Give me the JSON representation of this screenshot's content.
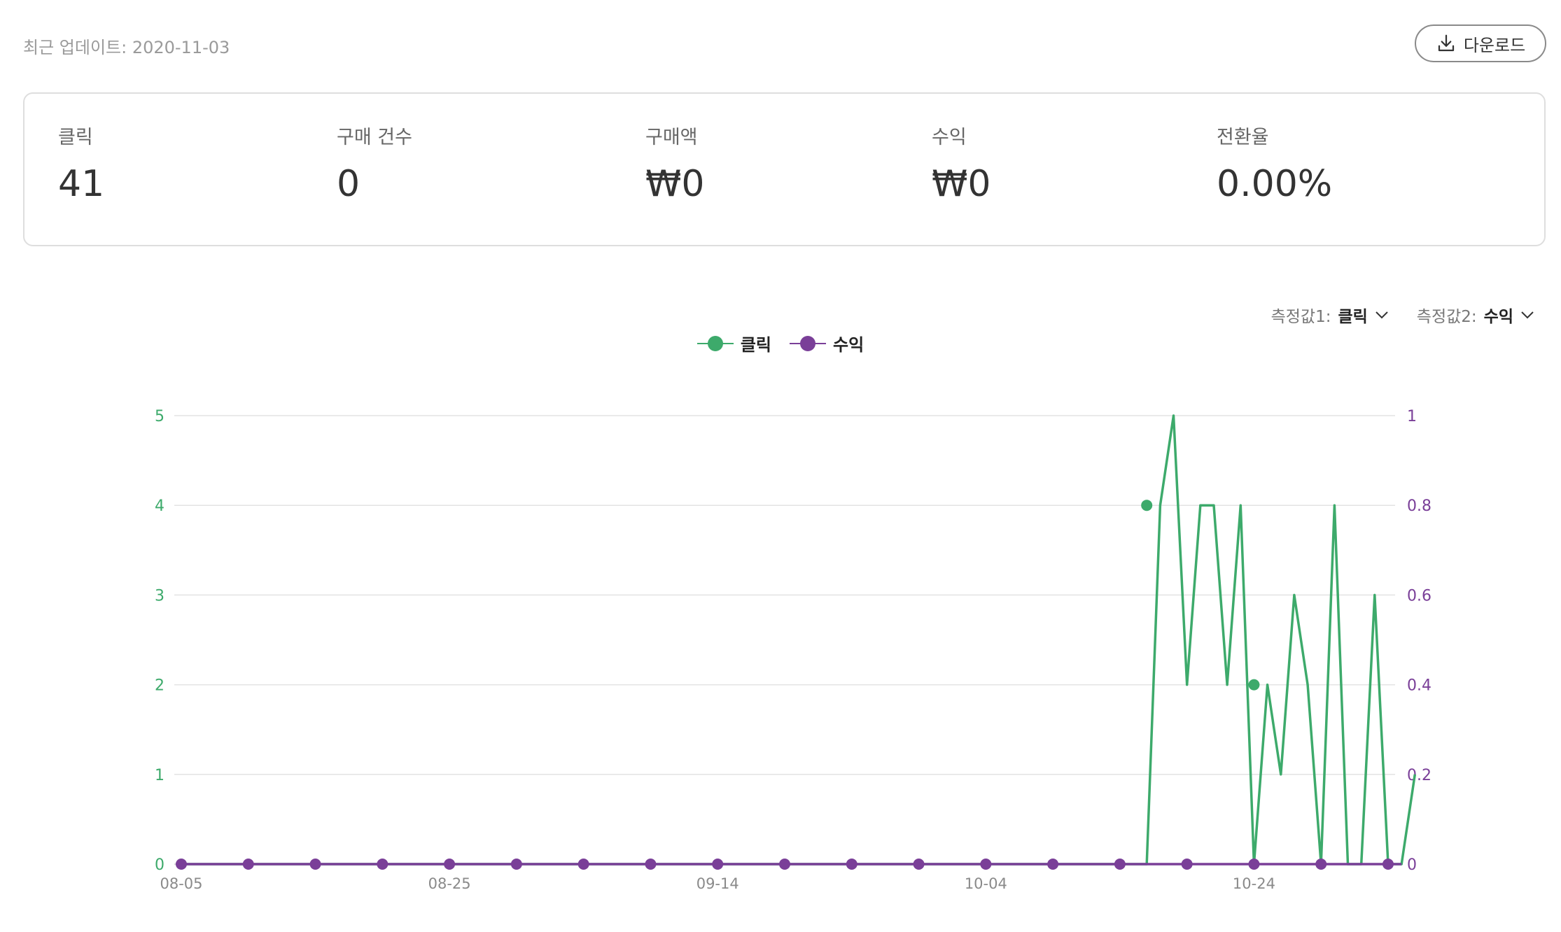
{
  "header": {
    "updated_text": "최근 업데이트: 2020-11-03",
    "download_label": "다운로드",
    "download_icon": "download-icon"
  },
  "stats": [
    {
      "label": "클릭",
      "value": "41"
    },
    {
      "label": "구매 건수",
      "value": "0"
    },
    {
      "label": "구매액",
      "value": "₩0"
    },
    {
      "label": "수익",
      "value": "₩0"
    },
    {
      "label": "전환율",
      "value": "0.00%"
    }
  ],
  "metrics": {
    "metric1_label": "측정값1:",
    "metric1_value": "클릭",
    "metric2_label": "측정값2:",
    "metric2_value": "수익",
    "chevron_icon": "chevron-down-icon"
  },
  "colors": {
    "clicks": "#3daa6b",
    "revenue": "#7a3f98",
    "grid": "#e3e3e3"
  },
  "chart_data": {
    "type": "line",
    "x_start": "2020-08-05",
    "x_end": "2020-11-03",
    "x_tick_labels": [
      "08-05",
      "08-25",
      "09-14",
      "10-04",
      "10-24"
    ],
    "legend": [
      "클릭",
      "수익"
    ],
    "legend_placement": "top-center",
    "grid": true,
    "y_left": {
      "ticks": [
        "0",
        "1",
        "2",
        "3",
        "4",
        "5"
      ],
      "range": [
        0,
        5
      ]
    },
    "y_right": {
      "ticks": [
        "0",
        "0.2",
        "0.4",
        "0.6",
        "0.8",
        "1"
      ],
      "range": [
        0,
        1
      ]
    },
    "series": [
      {
        "name": "클릭",
        "axis": "left",
        "values": [
          0,
          0,
          0,
          0,
          0,
          0,
          0,
          0,
          0,
          0,
          0,
          0,
          0,
          0,
          0,
          0,
          0,
          0,
          0,
          0,
          0,
          0,
          0,
          0,
          0,
          0,
          0,
          0,
          0,
          0,
          0,
          0,
          0,
          0,
          0,
          0,
          0,
          0,
          0,
          0,
          0,
          0,
          0,
          0,
          0,
          0,
          0,
          0,
          0,
          0,
          0,
          0,
          0,
          0,
          0,
          0,
          0,
          0,
          0,
          0,
          0,
          0,
          0,
          0,
          0,
          0,
          0,
          0,
          0,
          0,
          0,
          0,
          0,
          4,
          5,
          2,
          4,
          4,
          2,
          4,
          0,
          2,
          1,
          3,
          2,
          0,
          4,
          0,
          0,
          3,
          0,
          0,
          1
        ],
        "marked_points": [
          {
            "x": "2020-10-16",
            "y": 4
          },
          {
            "x": "2020-10-24",
            "y": 2
          }
        ]
      },
      {
        "name": "수익",
        "axis": "right",
        "values": [
          0,
          0,
          0,
          0,
          0,
          0,
          0,
          0,
          0,
          0,
          0,
          0,
          0,
          0,
          0,
          0,
          0,
          0,
          0,
          0,
          0,
          0,
          0,
          0,
          0,
          0,
          0,
          0,
          0,
          0,
          0,
          0,
          0,
          0,
          0,
          0,
          0,
          0,
          0,
          0,
          0,
          0,
          0,
          0,
          0,
          0,
          0,
          0,
          0,
          0,
          0,
          0,
          0,
          0,
          0,
          0,
          0,
          0,
          0,
          0,
          0,
          0,
          0,
          0,
          0,
          0,
          0,
          0,
          0,
          0,
          0,
          0,
          0,
          0,
          0,
          0,
          0,
          0,
          0,
          0,
          0,
          0,
          0,
          0,
          0,
          0,
          0,
          0,
          0,
          0,
          0,
          0
        ]
      }
    ]
  }
}
